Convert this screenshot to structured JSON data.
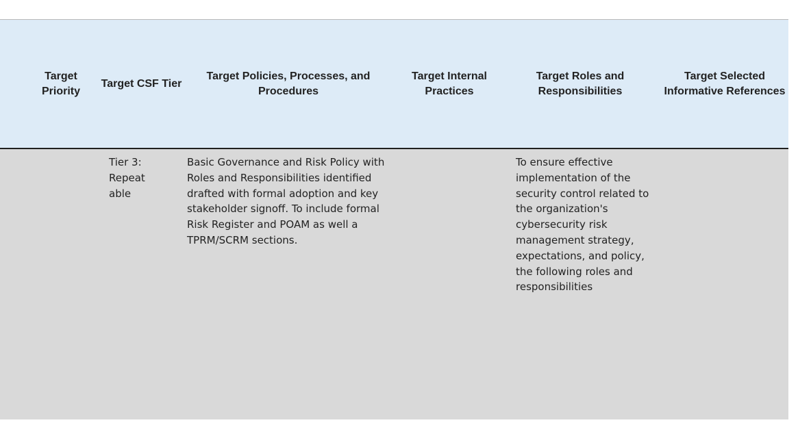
{
  "table": {
    "headers": [
      "Target Priority",
      "Target CSF Tier",
      "Target Policies, Processes, and Procedures",
      "Target Internal Practices",
      "Target Roles and Responsibilities",
      "Target Selected Informative References"
    ],
    "row": {
      "priority": "",
      "csf_tier": "Tier 3: Repeatable",
      "policies": "Basic Governance and Risk Policy with Roles and Responsibilities identified drafted with formal adoption and key stakeholder signoff. To include formal Risk Register and POAM as well a TPRM/SCRM sections.",
      "internal_practices": "",
      "roles": "To ensure effective implementation of the security control related to the organization's cybersecurity risk management strategy, expectations, and policy, the following roles and responsibilities",
      "references": ""
    }
  }
}
